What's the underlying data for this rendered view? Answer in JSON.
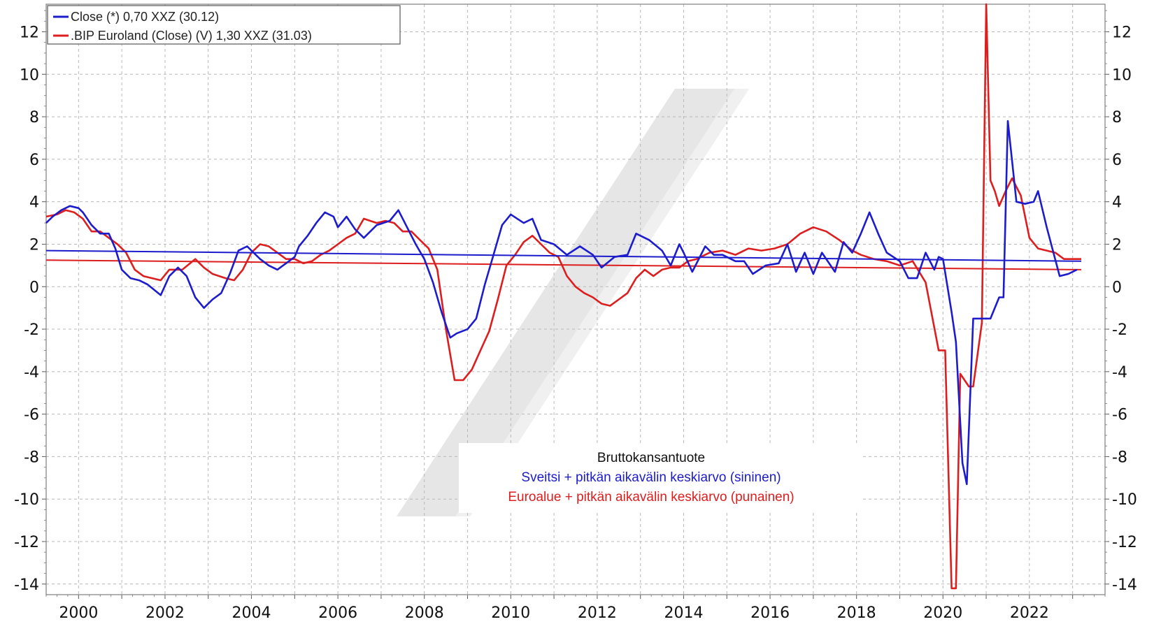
{
  "chart_data": {
    "type": "line",
    "title": "",
    "xlabel": "",
    "ylabel": "",
    "x_ticks": [
      "2000",
      "2002",
      "2004",
      "2006",
      "2008",
      "2010",
      "2012",
      "2014",
      "2016",
      "2018",
      "2020",
      "2022"
    ],
    "y_ticks": [
      "12",
      "10",
      "8",
      "6",
      "4",
      "2",
      "0",
      "-2",
      "-4",
      "-6",
      "-8",
      "-10",
      "-12",
      "-14"
    ],
    "xlim": [
      1999.25,
      2023.75
    ],
    "ylim": [
      -14.5,
      13.3
    ],
    "grid": true,
    "legend_position": "top-left",
    "annotation": {
      "title": "Bruttokansantuote",
      "line_blue": "Sveitsi + pitkän aikavälin keskiarvo (sininen)",
      "line_red": "Euroalue + pitkän aikavälin keskiarvo (punainen)"
    },
    "colors": {
      "blue": "#1c1ccc",
      "red": "#dd1e1e",
      "grid": "#b8b8b8",
      "axis": "#7f7f7f",
      "watermark": "#e6e6e6"
    },
    "series": [
      {
        "name": "Close (*) 0,70 XXZ (30.12)",
        "color": "#1c1ccc",
        "x": [
          1999.25,
          1999.4,
          1999.6,
          1999.8,
          2000.0,
          2000.1,
          2000.3,
          2000.5,
          2000.7,
          2000.85,
          2001.0,
          2001.2,
          2001.4,
          2001.6,
          2001.9,
          2002.1,
          2002.3,
          2002.5,
          2002.7,
          2002.9,
          2003.1,
          2003.3,
          2003.5,
          2003.7,
          2003.9,
          2004.0,
          2004.2,
          2004.4,
          2004.6,
          2004.8,
          2005.0,
          2005.1,
          2005.3,
          2005.5,
          2005.7,
          2005.9,
          2006.0,
          2006.2,
          2006.4,
          2006.6,
          2006.9,
          2007.2,
          2007.4,
          2007.6,
          2007.8,
          2008.0,
          2008.2,
          2008.4,
          2008.6,
          2008.75,
          2009.0,
          2009.2,
          2009.4,
          2009.6,
          2009.8,
          2010.0,
          2010.3,
          2010.5,
          2010.7,
          2011.0,
          2011.3,
          2011.6,
          2011.9,
          2012.1,
          2012.4,
          2012.7,
          2012.9,
          2013.2,
          2013.5,
          2013.7,
          2013.9,
          2014.0,
          2014.2,
          2014.5,
          2014.7,
          2014.9,
          2015.2,
          2015.4,
          2015.6,
          2015.9,
          2016.2,
          2016.4,
          2016.6,
          2016.8,
          2017.0,
          2017.2,
          2017.5,
          2017.7,
          2017.9,
          2018.1,
          2018.3,
          2018.5,
          2018.7,
          2019.0,
          2019.2,
          2019.4,
          2019.6,
          2019.8,
          2019.9,
          2020.0,
          2020.2,
          2020.3,
          2020.45,
          2020.55,
          2020.7,
          2020.9,
          2021.1,
          2021.3,
          2021.4,
          2021.5,
          2021.7,
          2021.9,
          2022.1,
          2022.2,
          2022.4,
          2022.7,
          2022.9,
          2023.1
        ],
        "values": [
          3.0,
          3.3,
          3.6,
          3.8,
          3.7,
          3.5,
          2.9,
          2.5,
          2.5,
          1.8,
          0.8,
          0.4,
          0.3,
          0.1,
          -0.4,
          0.5,
          0.9,
          0.5,
          -0.5,
          -1.0,
          -0.6,
          -0.3,
          0.6,
          1.7,
          1.9,
          1.7,
          1.3,
          1.0,
          0.8,
          1.1,
          1.4,
          1.9,
          2.4,
          3.0,
          3.5,
          3.3,
          2.8,
          3.3,
          2.7,
          2.3,
          2.9,
          3.1,
          3.6,
          2.8,
          2.0,
          1.3,
          0.2,
          -1.2,
          -2.4,
          -2.2,
          -2.0,
          -1.5,
          0.1,
          1.5,
          2.9,
          3.4,
          3.0,
          3.2,
          2.2,
          2.0,
          1.5,
          1.9,
          1.5,
          0.9,
          1.4,
          1.5,
          2.5,
          2.2,
          1.7,
          1.0,
          2.0,
          1.6,
          0.7,
          1.9,
          1.5,
          1.5,
          1.2,
          1.2,
          0.6,
          1.0,
          1.1,
          2.0,
          0.7,
          1.6,
          0.6,
          1.6,
          0.7,
          2.1,
          1.6,
          2.5,
          3.5,
          2.5,
          1.6,
          1.2,
          0.4,
          0.4,
          1.6,
          0.8,
          1.4,
          1.3,
          -1.2,
          -2.6,
          -8.3,
          -9.3,
          -1.5,
          -1.5,
          -1.5,
          -0.5,
          -0.5,
          7.8,
          4.0,
          3.9,
          4.0,
          4.5,
          2.8,
          0.5,
          0.6,
          0.8
        ]
      },
      {
        "name": ".BIP Euroland (Close) (V) 1,30 XXZ (31.03)",
        "color": "#dd1e1e",
        "x": [
          1999.25,
          1999.5,
          1999.7,
          1999.9,
          2000.1,
          2000.3,
          2000.5,
          2000.7,
          2000.9,
          2001.1,
          2001.3,
          2001.5,
          2001.7,
          2001.9,
          2002.1,
          2002.4,
          2002.7,
          2002.9,
          2003.1,
          2003.4,
          2003.6,
          2003.8,
          2004.0,
          2004.2,
          2004.4,
          2004.6,
          2004.8,
          2005.0,
          2005.2,
          2005.4,
          2005.6,
          2005.8,
          2006.0,
          2006.2,
          2006.4,
          2006.6,
          2006.9,
          2007.1,
          2007.3,
          2007.5,
          2007.7,
          2007.9,
          2008.1,
          2008.3,
          2008.5,
          2008.7,
          2008.9,
          2009.1,
          2009.3,
          2009.5,
          2009.7,
          2009.9,
          2010.1,
          2010.3,
          2010.5,
          2010.7,
          2010.9,
          2011.1,
          2011.3,
          2011.5,
          2011.7,
          2011.9,
          2012.1,
          2012.3,
          2012.5,
          2012.7,
          2012.9,
          2013.1,
          2013.3,
          2013.5,
          2013.7,
          2013.9,
          2014.1,
          2014.3,
          2014.6,
          2014.9,
          2015.2,
          2015.5,
          2015.8,
          2016.1,
          2016.4,
          2016.7,
          2017.0,
          2017.3,
          2017.6,
          2017.9,
          2018.1,
          2018.4,
          2018.7,
          2019.0,
          2019.3,
          2019.6,
          2019.9,
          2020.05,
          2020.2,
          2020.3,
          2020.4,
          2020.6,
          2020.7,
          2020.9,
          2021.0,
          2021.1,
          2021.2,
          2021.3,
          2021.45,
          2021.6,
          2021.8,
          2022.0,
          2022.2,
          2022.4,
          2022.6,
          2022.8,
          2023.0,
          2023.2
        ],
        "values": [
          3.3,
          3.4,
          3.6,
          3.5,
          3.2,
          2.6,
          2.6,
          2.3,
          2.0,
          1.6,
          0.8,
          0.5,
          0.4,
          0.3,
          0.8,
          0.8,
          1.3,
          0.9,
          0.6,
          0.4,
          0.3,
          0.8,
          1.6,
          2.0,
          1.9,
          1.6,
          1.3,
          1.3,
          1.1,
          1.2,
          1.5,
          1.7,
          2.0,
          2.3,
          2.5,
          3.2,
          3.0,
          3.1,
          3.0,
          2.6,
          2.6,
          2.2,
          1.8,
          0.8,
          -2.0,
          -4.4,
          -4.4,
          -3.9,
          -3.0,
          -2.1,
          -0.6,
          1.0,
          1.5,
          2.1,
          2.4,
          2.0,
          1.6,
          1.4,
          0.5,
          0.0,
          -0.3,
          -0.5,
          -0.8,
          -0.9,
          -0.6,
          -0.3,
          0.4,
          0.8,
          0.5,
          0.8,
          0.9,
          0.9,
          1.2,
          1.3,
          1.6,
          1.7,
          1.5,
          1.8,
          1.7,
          1.8,
          2.0,
          2.5,
          2.8,
          2.6,
          2.2,
          1.7,
          1.5,
          1.3,
          1.2,
          1.0,
          1.2,
          0.2,
          -3.0,
          -3.0,
          -14.2,
          -14.2,
          -4.1,
          -4.7,
          -4.7,
          -1.7,
          13.3,
          5.0,
          4.5,
          3.8,
          4.5,
          5.1,
          4.3,
          2.3,
          1.8,
          1.7,
          1.6,
          1.3,
          1.3,
          1.3
        ]
      },
      {
        "name": "Sveitsi pitkän aikavälin keskiarvo",
        "color": "#1c1ccc",
        "x": [
          1999.25,
          2023.2
        ],
        "values": [
          1.7,
          1.2
        ]
      },
      {
        "name": "Euroalue pitkän aikavälin keskiarvo",
        "color": "#dd1e1e",
        "x": [
          1999.25,
          2023.2
        ],
        "values": [
          1.25,
          0.8
        ]
      }
    ]
  }
}
